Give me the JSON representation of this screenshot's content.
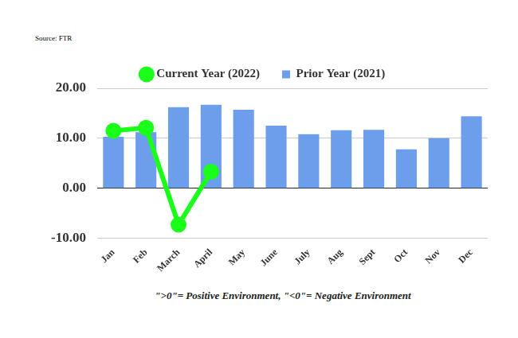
{
  "chart_data": {
    "type": "bar",
    "source": "Source: FTR",
    "caption": "\">0\"= Positive Environment, \"<0\"= Negative Environment",
    "categories": [
      "Jan",
      "Feb",
      "March",
      "April",
      "May",
      "June",
      "July",
      "Aug",
      "Sept",
      "Oct",
      "Nov",
      "Dec"
    ],
    "series": [
      {
        "name": "Prior Year (2021)",
        "type": "bar",
        "color": "#6d9eeb",
        "values": [
          10.3,
          11.2,
          16.2,
          16.7,
          15.7,
          12.5,
          10.8,
          11.6,
          11.7,
          7.8,
          10.0,
          14.4
        ]
      },
      {
        "name": "Current Year (2022)",
        "type": "line",
        "color": "#1aff1a",
        "marker": "circle",
        "values": [
          11.5,
          12.1,
          -7.3,
          3.3,
          null,
          null,
          null,
          null,
          null,
          null,
          null,
          null
        ]
      }
    ],
    "ylim": [
      -10,
      20
    ],
    "yticks": [
      {
        "value": -10,
        "label": "-10.00"
      },
      {
        "value": 0,
        "label": "0.00"
      },
      {
        "value": 10,
        "label": "10.00"
      },
      {
        "value": 20,
        "label": "20.00"
      }
    ],
    "grid": true,
    "legend": "top"
  }
}
